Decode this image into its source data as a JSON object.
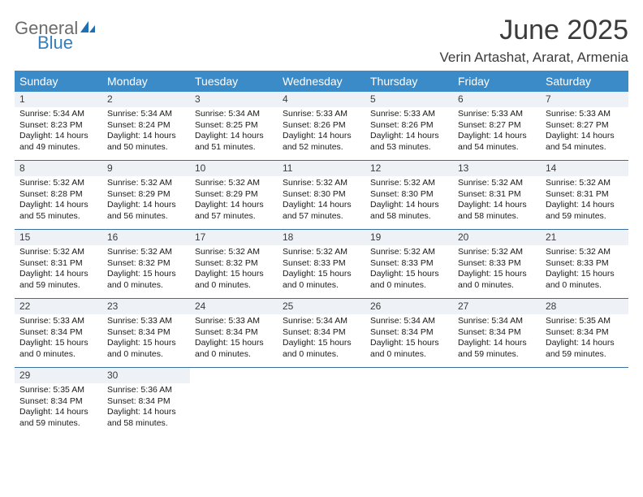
{
  "logo": {
    "word1": "General",
    "word2": "Blue",
    "text_color_1": "#6b6b6b",
    "text_color_2": "#2f7fc2",
    "icon_color": "#1f6fb2"
  },
  "title": "June 2025",
  "location": "Verin Artashat, Ararat, Armenia",
  "colors": {
    "header_bg": "#3b8bc9",
    "header_text": "#ffffff",
    "week_divider": "#3b6fa0",
    "daynum_bg": "#eef1f5",
    "body_text": "#1a1a1a",
    "title_text": "#3b3b3b",
    "page_bg": "#ffffff"
  },
  "typography": {
    "title_fontsize": 34,
    "location_fontsize": 17,
    "day_header_fontsize": 14,
    "daynum_fontsize": 12,
    "cell_fontsize": 10.5
  },
  "day_names": [
    "Sunday",
    "Monday",
    "Tuesday",
    "Wednesday",
    "Thursday",
    "Friday",
    "Saturday"
  ],
  "days": [
    {
      "n": 1,
      "sunrise": "5:34 AM",
      "sunset": "8:23 PM",
      "daylight": "14 hours and 49 minutes."
    },
    {
      "n": 2,
      "sunrise": "5:34 AM",
      "sunset": "8:24 PM",
      "daylight": "14 hours and 50 minutes."
    },
    {
      "n": 3,
      "sunrise": "5:34 AM",
      "sunset": "8:25 PM",
      "daylight": "14 hours and 51 minutes."
    },
    {
      "n": 4,
      "sunrise": "5:33 AM",
      "sunset": "8:26 PM",
      "daylight": "14 hours and 52 minutes."
    },
    {
      "n": 5,
      "sunrise": "5:33 AM",
      "sunset": "8:26 PM",
      "daylight": "14 hours and 53 minutes."
    },
    {
      "n": 6,
      "sunrise": "5:33 AM",
      "sunset": "8:27 PM",
      "daylight": "14 hours and 54 minutes."
    },
    {
      "n": 7,
      "sunrise": "5:33 AM",
      "sunset": "8:27 PM",
      "daylight": "14 hours and 54 minutes."
    },
    {
      "n": 8,
      "sunrise": "5:32 AM",
      "sunset": "8:28 PM",
      "daylight": "14 hours and 55 minutes."
    },
    {
      "n": 9,
      "sunrise": "5:32 AM",
      "sunset": "8:29 PM",
      "daylight": "14 hours and 56 minutes."
    },
    {
      "n": 10,
      "sunrise": "5:32 AM",
      "sunset": "8:29 PM",
      "daylight": "14 hours and 57 minutes."
    },
    {
      "n": 11,
      "sunrise": "5:32 AM",
      "sunset": "8:30 PM",
      "daylight": "14 hours and 57 minutes."
    },
    {
      "n": 12,
      "sunrise": "5:32 AM",
      "sunset": "8:30 PM",
      "daylight": "14 hours and 58 minutes."
    },
    {
      "n": 13,
      "sunrise": "5:32 AM",
      "sunset": "8:31 PM",
      "daylight": "14 hours and 58 minutes."
    },
    {
      "n": 14,
      "sunrise": "5:32 AM",
      "sunset": "8:31 PM",
      "daylight": "14 hours and 59 minutes."
    },
    {
      "n": 15,
      "sunrise": "5:32 AM",
      "sunset": "8:31 PM",
      "daylight": "14 hours and 59 minutes."
    },
    {
      "n": 16,
      "sunrise": "5:32 AM",
      "sunset": "8:32 PM",
      "daylight": "15 hours and 0 minutes."
    },
    {
      "n": 17,
      "sunrise": "5:32 AM",
      "sunset": "8:32 PM",
      "daylight": "15 hours and 0 minutes."
    },
    {
      "n": 18,
      "sunrise": "5:32 AM",
      "sunset": "8:33 PM",
      "daylight": "15 hours and 0 minutes."
    },
    {
      "n": 19,
      "sunrise": "5:32 AM",
      "sunset": "8:33 PM",
      "daylight": "15 hours and 0 minutes."
    },
    {
      "n": 20,
      "sunrise": "5:32 AM",
      "sunset": "8:33 PM",
      "daylight": "15 hours and 0 minutes."
    },
    {
      "n": 21,
      "sunrise": "5:32 AM",
      "sunset": "8:33 PM",
      "daylight": "15 hours and 0 minutes."
    },
    {
      "n": 22,
      "sunrise": "5:33 AM",
      "sunset": "8:34 PM",
      "daylight": "15 hours and 0 minutes."
    },
    {
      "n": 23,
      "sunrise": "5:33 AM",
      "sunset": "8:34 PM",
      "daylight": "15 hours and 0 minutes."
    },
    {
      "n": 24,
      "sunrise": "5:33 AM",
      "sunset": "8:34 PM",
      "daylight": "15 hours and 0 minutes."
    },
    {
      "n": 25,
      "sunrise": "5:34 AM",
      "sunset": "8:34 PM",
      "daylight": "15 hours and 0 minutes."
    },
    {
      "n": 26,
      "sunrise": "5:34 AM",
      "sunset": "8:34 PM",
      "daylight": "15 hours and 0 minutes."
    },
    {
      "n": 27,
      "sunrise": "5:34 AM",
      "sunset": "8:34 PM",
      "daylight": "14 hours and 59 minutes."
    },
    {
      "n": 28,
      "sunrise": "5:35 AM",
      "sunset": "8:34 PM",
      "daylight": "14 hours and 59 minutes."
    },
    {
      "n": 29,
      "sunrise": "5:35 AM",
      "sunset": "8:34 PM",
      "daylight": "14 hours and 59 minutes."
    },
    {
      "n": 30,
      "sunrise": "5:36 AM",
      "sunset": "8:34 PM",
      "daylight": "14 hours and 58 minutes."
    }
  ],
  "labels": {
    "sunrise": "Sunrise:",
    "sunset": "Sunset:",
    "daylight": "Daylight:"
  },
  "layout": {
    "columns": 7,
    "first_day_offset": 0,
    "total_cells": 35
  }
}
